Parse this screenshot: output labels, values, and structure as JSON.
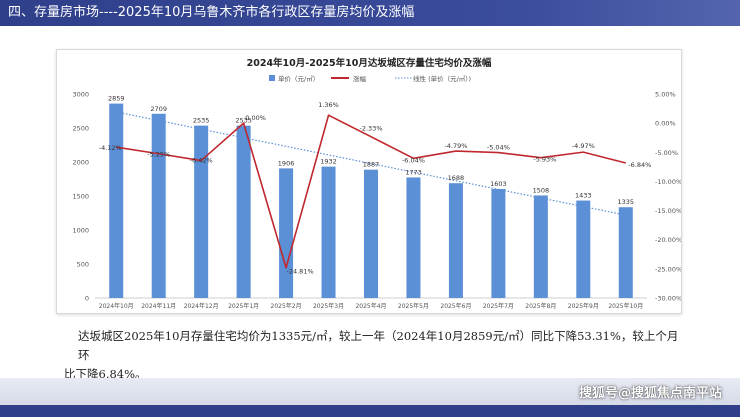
{
  "header": {
    "title": "四、存量房市场----2025年10月乌鲁木齐市各行政区存量房均价及涨幅"
  },
  "chart_data": {
    "type": "bar",
    "title": "2024年10月-2025年10月达坂城区存量住宅均价及涨幅",
    "legend": [
      "单价（元/㎡）",
      "涨幅",
      "线性 (单价（元/㎡）)"
    ],
    "legend_position": "top",
    "categories": [
      "2024年10月",
      "2024年11月",
      "2024年12月",
      "2025年1月",
      "2025年2月",
      "2025年3月",
      "2025年4月",
      "2025年5月",
      "2025年6月",
      "2025年7月",
      "2025年8月",
      "2025年9月",
      "2025年10月"
    ],
    "series": [
      {
        "name": "单价（元/㎡）",
        "type": "bar",
        "axis": "left",
        "values": [
          2859,
          2709,
          2535,
          2535,
          1906,
          1932,
          1887,
          1773,
          1688,
          1603,
          1508,
          1433,
          1335
        ],
        "labels": [
          "2859",
          "2709",
          "2535",
          "2535",
          "1906",
          "1932",
          "1887",
          "1773",
          "1688",
          "1603",
          "1508",
          "1433",
          "1335"
        ]
      },
      {
        "name": "涨幅",
        "type": "line",
        "axis": "right",
        "values": [
          -4.12,
          -5.25,
          -6.42,
          0.0,
          -24.81,
          1.36,
          -2.33,
          -6.04,
          -4.79,
          -5.04,
          -5.93,
          -4.97,
          -6.84
        ],
        "labels": [
          "-4.12%",
          "-5.25%",
          "-6.42%",
          "0.00%",
          "-24.81%",
          "1.36%",
          "-2.33%",
          "-6.04%",
          "-4.79%",
          "-5.04%",
          "-5.93%",
          "-4.97%",
          "-6.84%"
        ]
      },
      {
        "name": "线性 (单价（元/㎡）)",
        "type": "trendline",
        "axis": "left"
      }
    ],
    "ylim_left": [
      0,
      3000
    ],
    "yticks_left": [
      "0",
      "500",
      "1000",
      "1500",
      "2000",
      "2500",
      "3000"
    ],
    "ylim_right": [
      -30,
      5
    ],
    "yticks_right": [
      "5.00%",
      "0.00%",
      "-5.00%",
      "-10.00%",
      "-15.00%",
      "-20.00%",
      "-25.00%",
      "-30.00%"
    ],
    "colors": {
      "bar": "#5b8fd6",
      "line": "#c0282e",
      "trend": "#5b8fd6"
    },
    "grid": false
  },
  "body": {
    "line1": "达坂城区2025年10月存量住宅均价为1335元/㎡，较上一年（2024年10月2859元/㎡）同比下降53.31%，较上个月环",
    "line2": "比下降6.84%。"
  },
  "watermark": "搜狐号@搜狐焦点南平站"
}
